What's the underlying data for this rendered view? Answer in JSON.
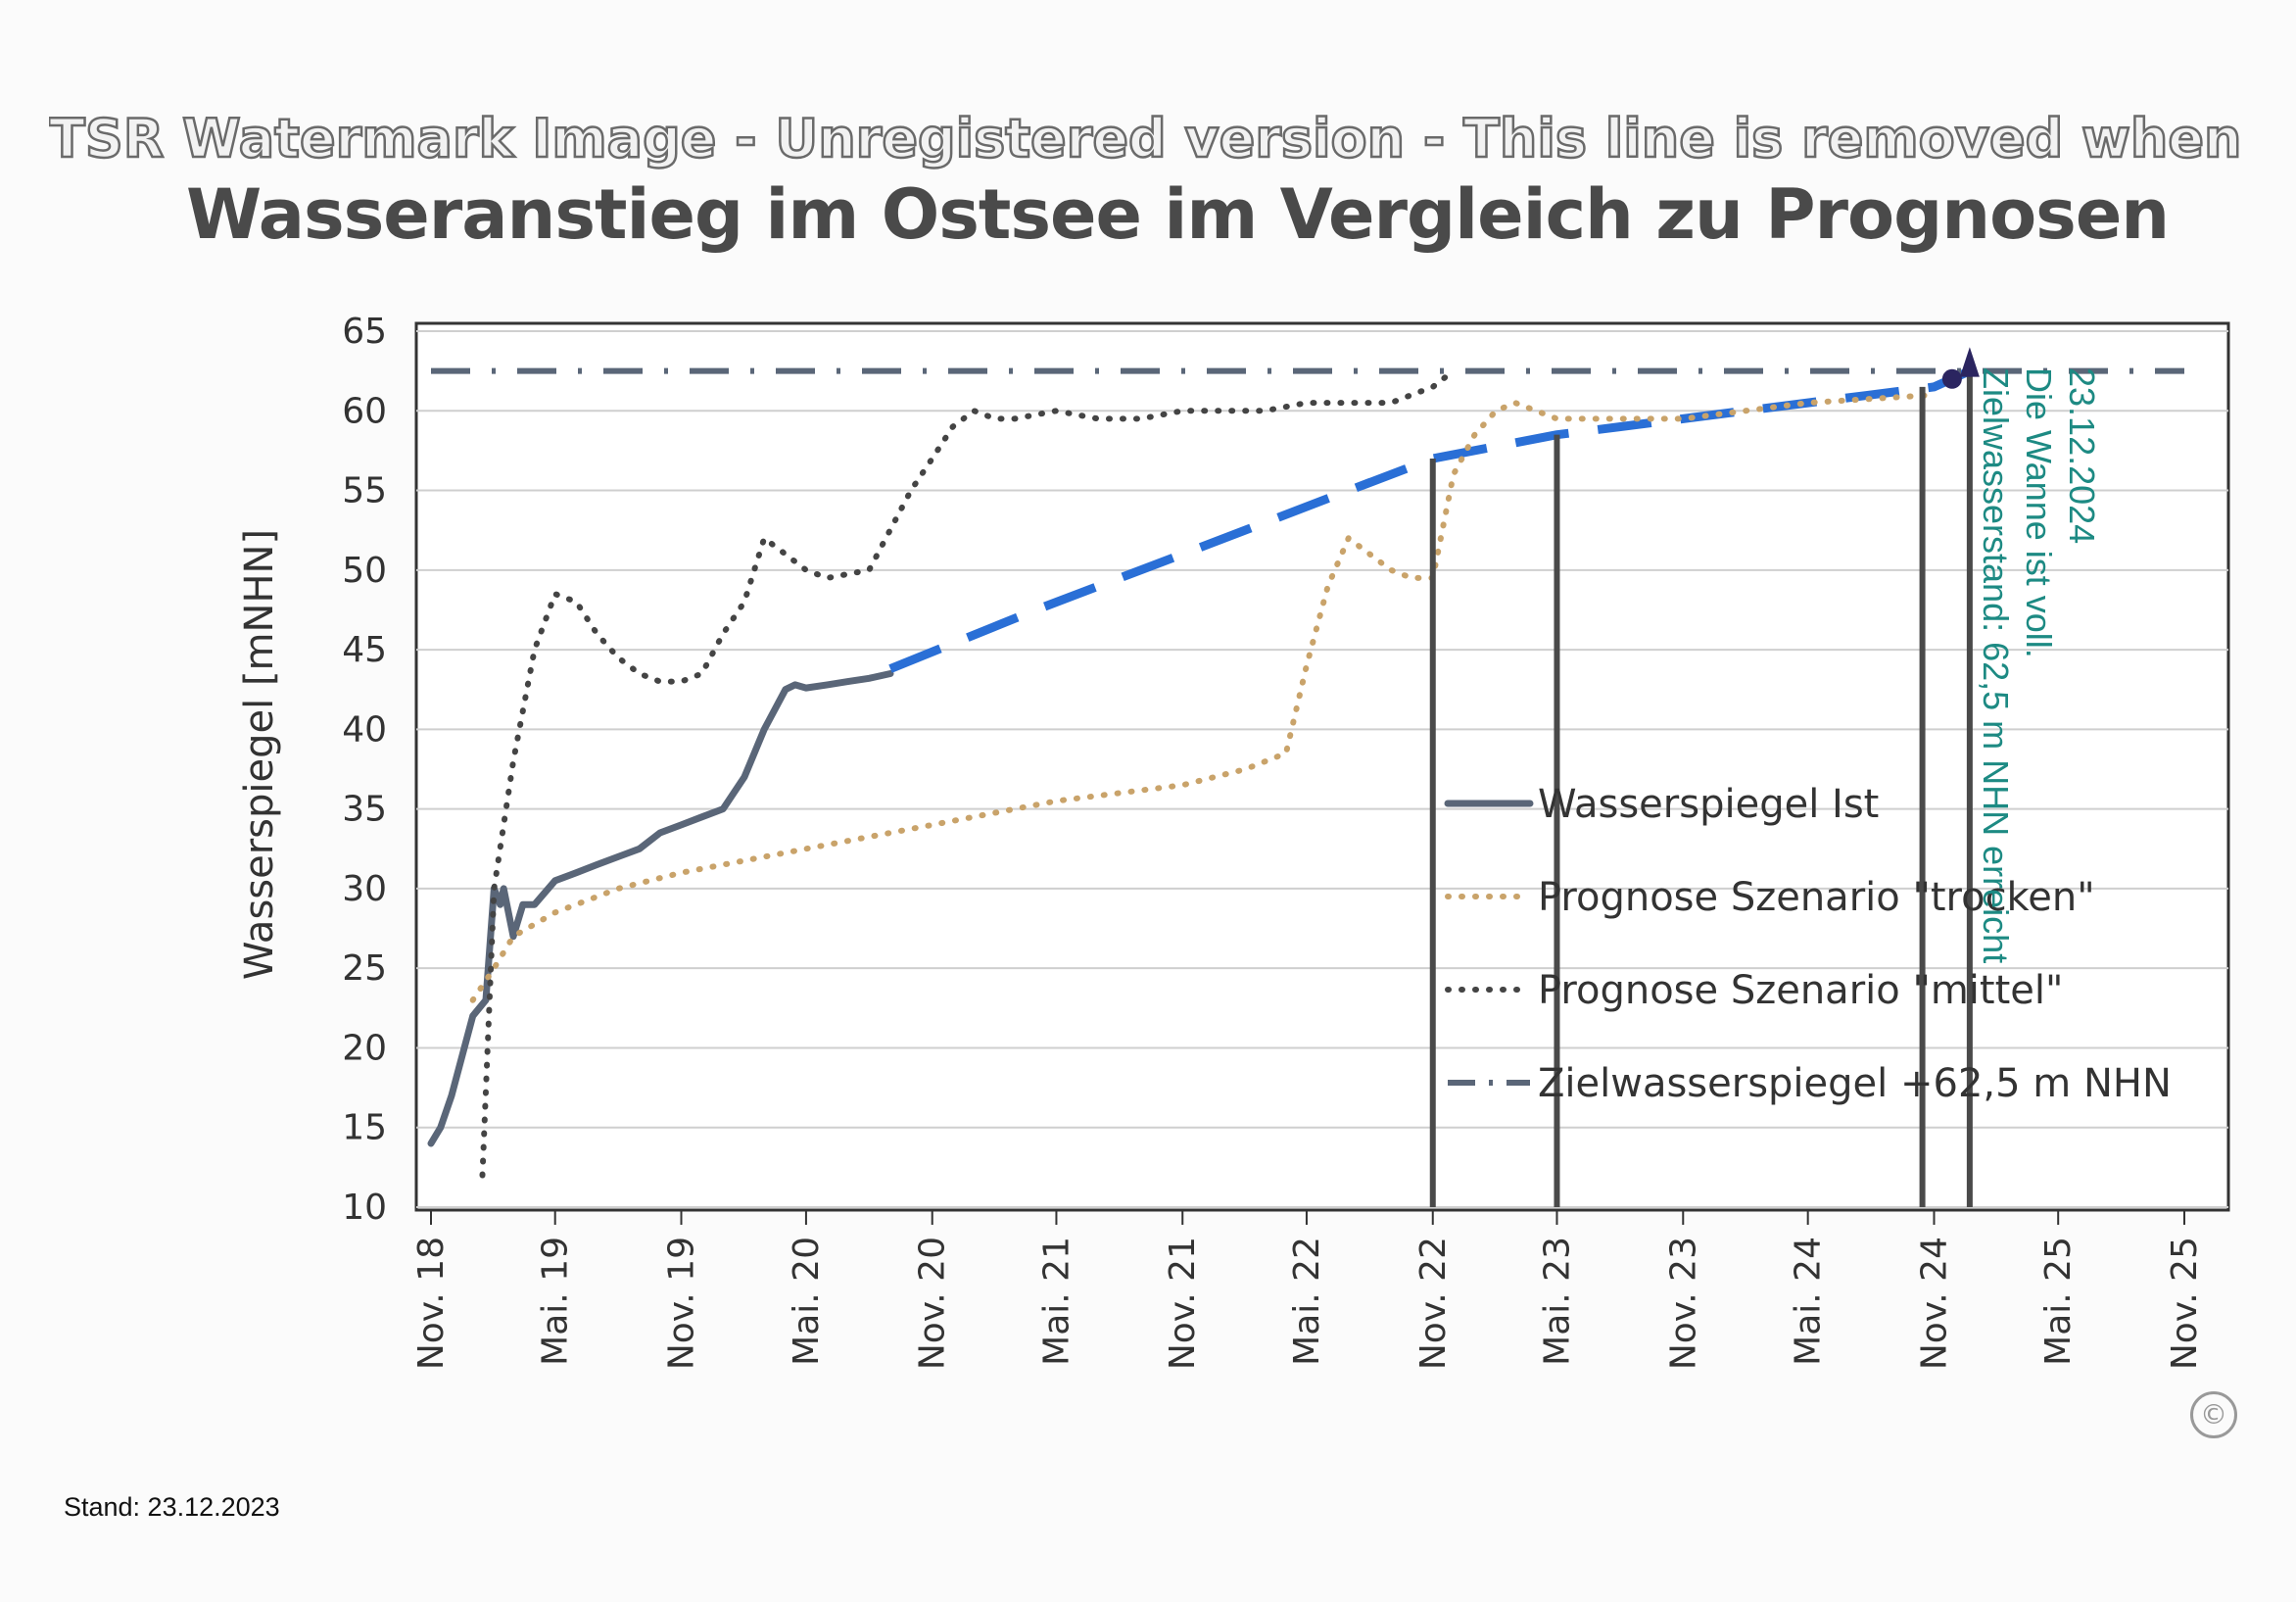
{
  "watermark_text": "TSR Watermark Image - Unregistered version - This line is removed when regist",
  "footer": {
    "stand": "Stand: 23.12.2023"
  },
  "annotation": {
    "lines": [
      "23.12.2024",
      "Die Wanne ist voll.",
      "Zielwasserstand: 62,5 m NHN erreicht"
    ],
    "color": "#1d8a83"
  },
  "copyright_symbol": "©",
  "chart_data": {
    "type": "line",
    "title": "Wasseranstieg im Ostsee im Vergleich zu Prognosen",
    "ylabel": "Wasserspiegel [mNHN]",
    "xlabel": "",
    "ylim": [
      10,
      65
    ],
    "yticks": [
      10,
      15,
      20,
      25,
      30,
      35,
      40,
      45,
      50,
      55,
      60,
      65
    ],
    "xlim": [
      "2018-11",
      "2025-11"
    ],
    "xtick_labels": [
      "Nov. 18",
      "Mai. 19",
      "Nov. 19",
      "Mai. 20",
      "Nov. 20",
      "Mai. 21",
      "Nov. 21",
      "Mai. 22",
      "Nov. 22",
      "Mai. 23",
      "Nov. 23",
      "Mai. 24",
      "Nov. 24",
      "Mai. 25",
      "Nov. 25"
    ],
    "xtick_dates": [
      "2018-11",
      "2019-05",
      "2019-11",
      "2020-05",
      "2020-11",
      "2021-05",
      "2021-11",
      "2022-05",
      "2022-11",
      "2023-05",
      "2023-11",
      "2024-05",
      "2024-11",
      "2025-05",
      "2025-11"
    ],
    "grid": "horizontal",
    "legend_position": "lower-right",
    "series": [
      {
        "name": "Wasserspiegel Ist",
        "style": "solid",
        "color": "#5a6678",
        "x": [
          "2018-11-01",
          "2018-11-15",
          "2018-12-01",
          "2019-01-01",
          "2019-01-20",
          "2019-02-01",
          "2019-02-10",
          "2019-02-15",
          "2019-03-01",
          "2019-03-15",
          "2019-04-01",
          "2019-05-01",
          "2019-06-01",
          "2019-07-01",
          "2019-08-01",
          "2019-09-01",
          "2019-10-01",
          "2019-11-01",
          "2019-12-01",
          "2020-01-01",
          "2020-02-01",
          "2020-03-01",
          "2020-04-01",
          "2020-04-15",
          "2020-05-01",
          "2020-06-01",
          "2020-07-01",
          "2020-08-01",
          "2020-09-01"
        ],
        "y": [
          14,
          15,
          17,
          22,
          23,
          30,
          29,
          30,
          27,
          29,
          29,
          30.5,
          31,
          31.5,
          32,
          32.5,
          33.5,
          34,
          34.5,
          35,
          37,
          40,
          42.5,
          42.8,
          42.6,
          42.8,
          43,
          43.2,
          43.5
        ]
      },
      {
        "name": "",
        "style": "dashed",
        "color": "#2a6fd6",
        "x": [
          "2020-09-01",
          "2021-04-01",
          "2021-11-01",
          "2022-06-01",
          "2022-11-01",
          "2023-05-01",
          "2023-11-01",
          "2024-05-01",
          "2024-11-01",
          "2024-12-23"
        ],
        "y": [
          43.8,
          47.5,
          51,
          54.5,
          57,
          58.5,
          59.5,
          60.5,
          61.5,
          62.5
        ]
      },
      {
        "name": "Prognose Szenario \"trocken\"",
        "style": "dotted",
        "color": "#c9a36a",
        "x": [
          "2019-01-01",
          "2019-02-01",
          "2019-03-01",
          "2019-05-01",
          "2019-08-01",
          "2019-11-01",
          "2020-05-01",
          "2020-11-01",
          "2021-05-01",
          "2021-11-01",
          "2022-02-01",
          "2022-04-01",
          "2022-05-01",
          "2022-06-01",
          "2022-07-01",
          "2022-09-01",
          "2022-10-01",
          "2022-11-01",
          "2022-12-01",
          "2023-01-01",
          "2023-02-01",
          "2023-03-01",
          "2023-05-01",
          "2023-11-01",
          "2024-05-01",
          "2024-11-01"
        ],
        "y": [
          23,
          25,
          27,
          28.5,
          30,
          31,
          32.5,
          34,
          35.5,
          36.5,
          37.5,
          38.5,
          44,
          49,
          52,
          50,
          49.5,
          49.5,
          56,
          58.5,
          60,
          60.5,
          59.5,
          59.5,
          60.5,
          61
        ]
      },
      {
        "name": "Prognose Szenario \"mittel\"",
        "style": "dotted",
        "color": "#444444",
        "x": [
          "2019-01-15",
          "2019-02-01",
          "2019-03-01",
          "2019-04-01",
          "2019-05-01",
          "2019-06-01",
          "2019-07-01",
          "2019-08-01",
          "2019-09-01",
          "2019-10-01",
          "2019-11-01",
          "2019-12-01",
          "2020-01-01",
          "2020-02-01",
          "2020-03-01",
          "2020-04-01",
          "2020-05-01",
          "2020-06-01",
          "2020-08-01",
          "2020-10-01",
          "2020-11-01",
          "2020-12-01",
          "2021-01-01",
          "2021-02-01",
          "2021-03-01",
          "2021-05-01",
          "2021-07-01",
          "2021-09-01",
          "2021-11-01",
          "2022-01-01",
          "2022-03-01",
          "2022-05-01",
          "2022-07-01",
          "2022-09-01",
          "2022-10-01",
          "2022-11-01",
          "2022-12-01"
        ],
        "y": [
          12,
          30,
          38,
          45,
          48.5,
          48,
          46,
          44.5,
          43.5,
          43,
          43,
          43.5,
          46,
          48,
          52,
          51,
          50,
          49.5,
          50,
          55,
          57,
          59,
          60,
          59.5,
          59.5,
          60,
          59.5,
          59.5,
          60,
          60,
          60,
          60.5,
          60.5,
          60.5,
          61,
          61.5,
          62.5
        ]
      },
      {
        "name": "Zielwasserspiegel +62,5 m NHN",
        "style": "dashdot",
        "color": "#5a6678",
        "x": [
          "2018-11-01",
          "2025-11-01"
        ],
        "y": [
          62.5,
          62.5
        ]
      }
    ],
    "vertical_markers": [
      "2022-11-01",
      "2023-05-01",
      "2024-10-15",
      "2024-12-23"
    ]
  }
}
